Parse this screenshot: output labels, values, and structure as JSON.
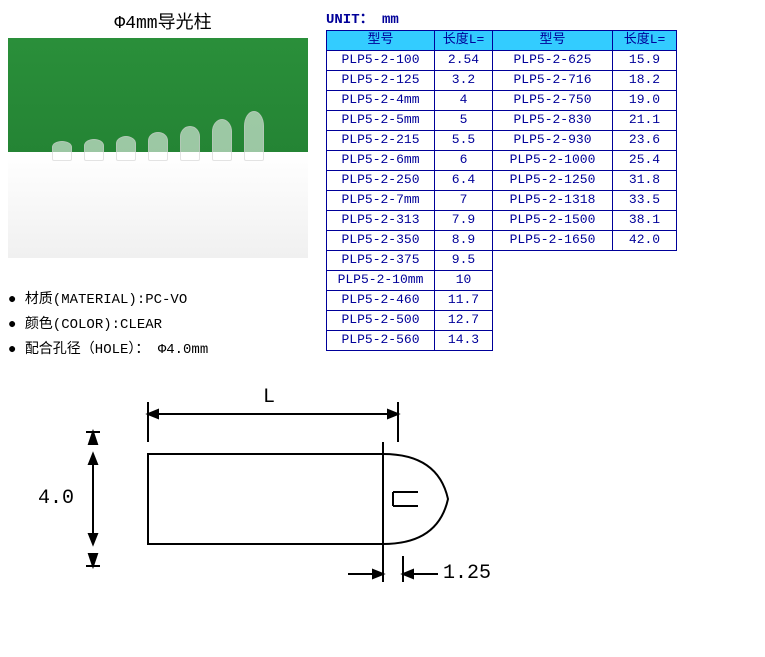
{
  "title": "Φ4mm导光柱",
  "unit_label": "UNIT： mm",
  "specs": {
    "material": "材质(MATERIAL):PC-VO",
    "color": "颜色(COLOR):CLEAR",
    "hole": "配合孔径（HOLE）： Φ4.0mm"
  },
  "table": {
    "header_model": "型号",
    "header_length": "长度L=",
    "left_rows": [
      {
        "model": "PLP5-2-100",
        "len": "2.54"
      },
      {
        "model": "PLP5-2-125",
        "len": "3.2"
      },
      {
        "model": "PLP5-2-4mm",
        "len": "4"
      },
      {
        "model": "PLP5-2-5mm",
        "len": "5"
      },
      {
        "model": "PLP5-2-215",
        "len": "5.5"
      },
      {
        "model": "PLP5-2-6mm",
        "len": "6"
      },
      {
        "model": "PLP5-2-250",
        "len": "6.4"
      },
      {
        "model": "PLP5-2-7mm",
        "len": "7"
      },
      {
        "model": "PLP5-2-313",
        "len": "7.9"
      },
      {
        "model": "PLP5-2-350",
        "len": "8.9"
      },
      {
        "model": "PLP5-2-375",
        "len": "9.5"
      },
      {
        "model": "PLP5-2-10mm",
        "len": "10"
      },
      {
        "model": "PLP5-2-460",
        "len": "11.7"
      },
      {
        "model": "PLP5-2-500",
        "len": "12.7"
      },
      {
        "model": "PLP5-2-560",
        "len": "14.3"
      }
    ],
    "right_rows": [
      {
        "model": "PLP5-2-625",
        "len": "15.9"
      },
      {
        "model": "PLP5-2-716",
        "len": "18.2"
      },
      {
        "model": "PLP5-2-750",
        "len": "19.0"
      },
      {
        "model": "PLP5-2-830",
        "len": "21.1"
      },
      {
        "model": "PLP5-2-930",
        "len": "23.6"
      },
      {
        "model": "PLP5-2-1000",
        "len": "25.4"
      },
      {
        "model": "PLP5-2-1250",
        "len": "31.8"
      },
      {
        "model": "PLP5-2-1318",
        "len": "33.5"
      },
      {
        "model": "PLP5-2-1500",
        "len": "38.1"
      },
      {
        "model": "PLP5-2-1650",
        "len": "42.0"
      }
    ],
    "colors": {
      "header_bg": "#33ccff",
      "border": "#000099",
      "text": "#000099"
    }
  },
  "drawing": {
    "dim_L": "L",
    "dim_d": "4.0",
    "dim_flange": "1.25",
    "stroke": "#000000",
    "stroke_width": 2
  },
  "photo": {
    "bg_top": "#2a8f3a",
    "bg_bottom": "#ffffff",
    "pillar_heights": [
      20,
      22,
      25,
      29,
      35,
      42,
      50
    ]
  }
}
